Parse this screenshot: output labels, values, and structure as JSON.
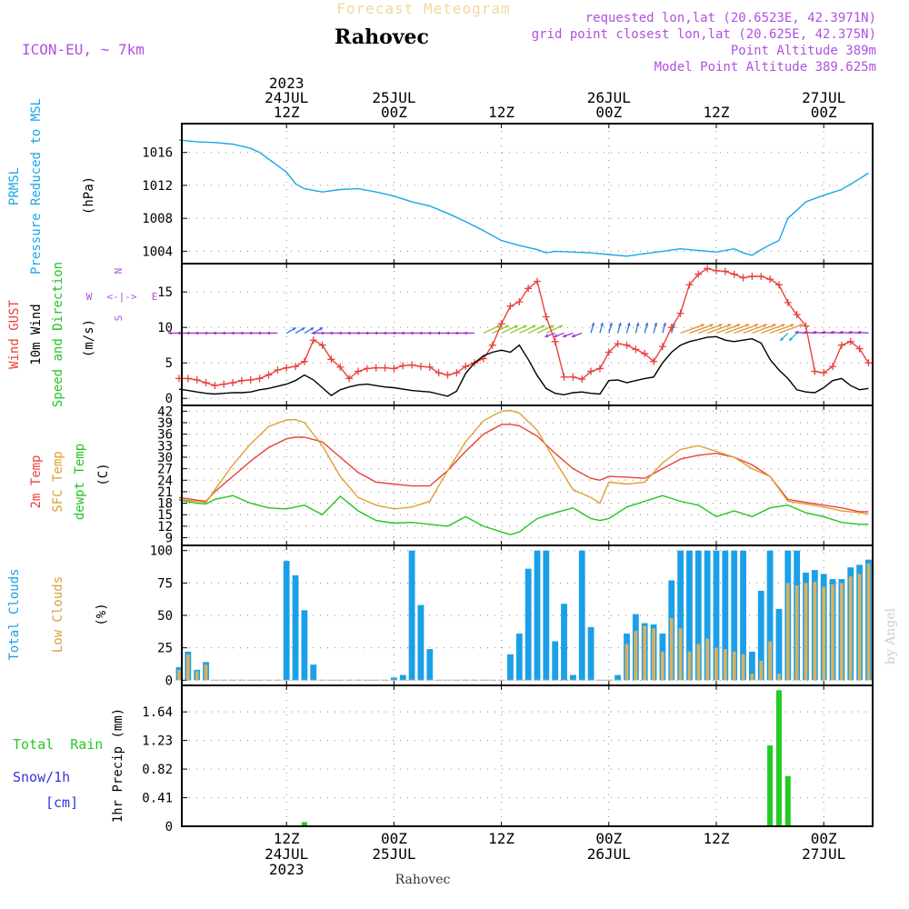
{
  "header": {
    "title": "Forecast Meteogram",
    "location": "Rahovec",
    "model": "ICON-EU, ~ 7km",
    "requested": "requested lon,lat (20.6523E, 42.3971N)",
    "gridpoint": "grid point closest lon,lat (20.625E, 42.375N)",
    "point_alt": "Point Altitude 389m",
    "model_alt": "Model Point Altitude 389.625m",
    "footer_location": "Rahovec",
    "watermark": "by Angel"
  },
  "colors": {
    "pressure": "#1aa6e8",
    "gust": "#e8413c",
    "wind": "#000000",
    "temp2m": "#e8413c",
    "sfctemp": "#e0a030",
    "dewpt": "#22c422",
    "total_clouds": "#1aa0e8",
    "low_clouds": "#d8b060",
    "rain": "#22cc22",
    "snow": "#3333dd",
    "purple": "#b050e0"
  },
  "time_axis": {
    "top_labels": [
      {
        "t": 12,
        "lines": [
          "2023",
          "24JUL",
          "12Z"
        ]
      },
      {
        "t": 24,
        "lines": [
          "25JUL",
          "00Z"
        ]
      },
      {
        "t": 36,
        "lines": [
          "12Z"
        ]
      },
      {
        "t": 48,
        "lines": [
          "26JUL",
          "00Z"
        ]
      },
      {
        "t": 60,
        "lines": [
          "12Z"
        ]
      },
      {
        "t": 72,
        "lines": [
          "27JUL",
          "00Z"
        ]
      }
    ],
    "bottom_labels": [
      {
        "t": 12,
        "lines": [
          "12Z",
          "24JUL",
          "2023"
        ]
      },
      {
        "t": 24,
        "lines": [
          "00Z",
          "25JUL"
        ]
      },
      {
        "t": 36,
        "lines": [
          "12Z"
        ]
      },
      {
        "t": 48,
        "lines": [
          "00Z",
          "26JUL"
        ]
      },
      {
        "t": 60,
        "lines": [
          "12Z"
        ]
      },
      {
        "t": 72,
        "lines": [
          "00Z",
          "27JUL"
        ]
      }
    ]
  },
  "chart_data": [
    {
      "type": "line",
      "panel": "pressure",
      "side_labels": [
        "PRMSL",
        "Pressure Reduced to MSL"
      ],
      "ylabel": "(hPa)",
      "ylim": [
        1002.5,
        1019.5
      ],
      "yticks": [
        1004,
        1008,
        1012,
        1016
      ],
      "x_hours_from_24JUL00Z": [
        0,
        2,
        4,
        6,
        8,
        9,
        10,
        11,
        12,
        13,
        14,
        16,
        18,
        20,
        22,
        24,
        26,
        28,
        30,
        32,
        34,
        36,
        38,
        40,
        41,
        42,
        44,
        46,
        48,
        50,
        52,
        54,
        56,
        58,
        60,
        62,
        63,
        64,
        65,
        66,
        67,
        68,
        70,
        72,
        74,
        76,
        77
      ],
      "series": [
        {
          "name": "PRMSL",
          "values": [
            1017.5,
            1017.3,
            1017.2,
            1017.0,
            1016.5,
            1016.0,
            1015.2,
            1014.4,
            1013.6,
            1012.2,
            1011.6,
            1011.2,
            1011.5,
            1011.6,
            1011.2,
            1010.7,
            1010.0,
            1009.5,
            1008.6,
            1007.6,
            1006.5,
            1005.3,
            1004.7,
            1004.2,
            1003.8,
            1004.0,
            1003.9,
            1003.8,
            1003.6,
            1003.4,
            1003.7,
            1004.0,
            1004.3,
            1004.1,
            1003.9,
            1004.3,
            1003.8,
            1003.5,
            1004.2,
            1004.8,
            1005.3,
            1008.0,
            1010.0,
            1010.8,
            1011.5,
            1012.8,
            1013.5
          ]
        }
      ]
    },
    {
      "type": "line",
      "panel": "wind",
      "side_labels": [
        "Wind GUST",
        "10m Wind",
        "Speed and Direction"
      ],
      "ylabel": "(m/s)",
      "ylim": [
        -1,
        19
      ],
      "yticks": [
        0,
        5,
        10,
        15
      ],
      "x_hours_from_24JUL00Z": [
        0,
        1,
        2,
        3,
        4,
        5,
        6,
        7,
        8,
        9,
        10,
        11,
        12,
        13,
        14,
        15,
        16,
        17,
        18,
        19,
        20,
        21,
        22,
        23,
        24,
        25,
        26,
        27,
        28,
        29,
        30,
        31,
        32,
        33,
        34,
        35,
        36,
        37,
        38,
        39,
        40,
        41,
        42,
        43,
        44,
        45,
        46,
        47,
        48,
        49,
        50,
        51,
        52,
        53,
        54,
        55,
        56,
        57,
        58,
        59,
        60,
        61,
        62,
        63,
        64,
        65,
        66,
        67,
        68,
        69,
        70,
        71,
        72,
        73,
        74,
        75,
        76,
        77
      ],
      "series": [
        {
          "name": "Wind GUST",
          "values": [
            2.8,
            2.8,
            2.6,
            2.2,
            1.8,
            2.0,
            2.2,
            2.5,
            2.6,
            2.8,
            3.3,
            4.0,
            4.3,
            4.5,
            5.2,
            8.2,
            7.5,
            5.5,
            4.4,
            2.8,
            3.8,
            4.2,
            4.3,
            4.3,
            4.2,
            4.6,
            4.7,
            4.5,
            4.4,
            3.6,
            3.3,
            3.6,
            4.5,
            5.0,
            5.6,
            7.5,
            10.5,
            13.0,
            13.6,
            15.5,
            16.5,
            11.5,
            8.0,
            3.0,
            3.0,
            2.7,
            3.8,
            4.2,
            6.5,
            7.7,
            7.5,
            6.9,
            6.3,
            5.2,
            7.3,
            10.0,
            12.0,
            16.0,
            17.5,
            18.3,
            18.0,
            17.9,
            17.5,
            17.0,
            17.2,
            17.2,
            16.8,
            16.0,
            13.5,
            11.8,
            10.2,
            3.8,
            3.6,
            4.5,
            7.5,
            8.0,
            7.0,
            5.0
          ]
        },
        {
          "name": "10m Wind",
          "values": [
            1.3,
            1.1,
            0.9,
            0.7,
            0.6,
            0.7,
            0.8,
            0.8,
            0.9,
            1.2,
            1.4,
            1.7,
            2.0,
            2.5,
            3.3,
            2.6,
            1.5,
            0.4,
            1.2,
            1.6,
            1.9,
            2.0,
            1.8,
            1.6,
            1.5,
            1.3,
            1.1,
            1.0,
            0.9,
            0.6,
            0.3,
            1.0,
            3.5,
            5.0,
            6.0,
            6.5,
            6.8,
            6.5,
            7.5,
            5.5,
            3.2,
            1.4,
            0.7,
            0.5,
            0.8,
            0.9,
            0.7,
            0.6,
            2.5,
            2.6,
            2.2,
            2.5,
            2.8,
            3.0,
            5.0,
            6.5,
            7.5,
            8.0,
            8.3,
            8.6,
            8.7,
            8.2,
            8.0,
            8.2,
            8.4,
            7.8,
            5.5,
            4.0,
            2.8,
            1.2,
            0.9,
            0.8,
            1.5,
            2.5,
            2.8,
            1.8,
            1.2,
            1.4
          ]
        }
      ]
    },
    {
      "type": "line",
      "panel": "temperature",
      "side_labels": [
        "2m Temp",
        "SFC Temp",
        "dewpt Temp"
      ],
      "ylabel": "(C)",
      "ylim": [
        7,
        43.5
      ],
      "yticks": [
        9,
        12,
        15,
        18,
        21,
        24,
        27,
        30,
        33,
        36,
        39,
        42
      ],
      "x_hours_from_24JUL00Z": [
        0,
        2,
        3,
        4,
        6,
        8,
        10,
        12,
        13,
        14,
        16,
        18,
        20,
        22,
        24,
        26,
        28,
        30,
        32,
        34,
        36,
        37,
        38,
        40,
        42,
        44,
        46,
        47,
        48,
        50,
        52,
        54,
        56,
        58,
        60,
        62,
        64,
        66,
        68,
        70,
        72,
        74,
        76,
        77
      ],
      "series": [
        {
          "name": "2m Temp",
          "values": [
            19.5,
            18.8,
            18.5,
            21.0,
            25.0,
            29.0,
            32.5,
            34.8,
            35.2,
            35.2,
            34.0,
            30.0,
            26.0,
            23.5,
            23.0,
            22.5,
            22.5,
            26.5,
            31.5,
            36.0,
            38.5,
            38.6,
            38.2,
            35.5,
            31.0,
            27.0,
            24.5,
            24.0,
            25.0,
            24.8,
            24.5,
            27.0,
            29.5,
            30.5,
            31.0,
            30.0,
            28.0,
            25.0,
            19.0,
            18.2,
            17.5,
            16.8,
            15.8,
            15.8
          ]
        },
        {
          "name": "SFC Temp",
          "values": [
            19.0,
            18.5,
            18.2,
            21.5,
            28.0,
            33.5,
            38.0,
            39.7,
            39.8,
            39.0,
            33.0,
            25.0,
            19.5,
            17.5,
            16.5,
            17.0,
            18.5,
            26.5,
            34.0,
            39.5,
            42.0,
            42.2,
            41.5,
            37.0,
            29.0,
            21.5,
            19.5,
            18.0,
            23.5,
            23.0,
            23.5,
            28.5,
            32.0,
            33.0,
            31.5,
            30.0,
            27.0,
            25.0,
            18.5,
            17.8,
            17.0,
            16.0,
            15.5,
            15.2
          ]
        },
        {
          "name": "dewpt Temp",
          "values": [
            18.8,
            18.0,
            17.8,
            19.0,
            20.0,
            18.0,
            16.8,
            16.5,
            17.0,
            17.5,
            15.0,
            19.8,
            16.0,
            13.5,
            12.8,
            13.0,
            12.5,
            12.0,
            14.5,
            12.0,
            10.5,
            9.8,
            10.5,
            14.0,
            15.5,
            16.8,
            14.0,
            13.5,
            14.0,
            17.0,
            18.5,
            20.0,
            18.5,
            17.5,
            14.5,
            16.0,
            14.5,
            16.8,
            17.5,
            15.5,
            14.5,
            13.0,
            12.5,
            12.5
          ]
        }
      ]
    },
    {
      "type": "bar",
      "panel": "clouds",
      "side_labels": [
        "Total Clouds",
        "Low Clouds"
      ],
      "ylabel": "(%)",
      "ylim": [
        -4,
        104
      ],
      "yticks": [
        0,
        25,
        50,
        75,
        100
      ],
      "x_hours_from_24JUL00Z": [
        0,
        1,
        2,
        3,
        4,
        5,
        6,
        7,
        8,
        9,
        10,
        11,
        12,
        13,
        14,
        15,
        16,
        17,
        18,
        19,
        20,
        21,
        22,
        23,
        24,
        25,
        26,
        27,
        28,
        29,
        30,
        31,
        32,
        33,
        34,
        35,
        36,
        37,
        38,
        39,
        40,
        41,
        42,
        43,
        44,
        45,
        46,
        47,
        48,
        49,
        50,
        51,
        52,
        53,
        54,
        55,
        56,
        57,
        58,
        59,
        60,
        61,
        62,
        63,
        64,
        65,
        66,
        67,
        68,
        69,
        70,
        71,
        72,
        73,
        74,
        75,
        76,
        77
      ],
      "series": [
        {
          "name": "Total Clouds",
          "values": [
            10,
            22,
            8,
            14,
            0,
            0,
            0,
            0,
            0,
            0,
            0,
            0,
            92,
            81,
            54,
            12,
            0,
            0,
            0,
            0,
            0,
            0,
            0,
            0,
            2,
            4,
            100,
            58,
            24,
            0,
            0,
            0,
            0,
            0,
            0,
            0,
            0,
            20,
            36,
            86,
            100,
            100,
            30,
            59,
            4,
            100,
            41,
            0,
            0,
            4,
            36,
            51,
            44,
            43,
            36,
            77,
            100,
            100,
            100,
            100,
            100,
            100,
            100,
            100,
            22,
            69,
            100,
            55,
            100,
            100,
            83,
            85,
            82,
            78,
            78,
            87,
            89,
            93
          ]
        },
        {
          "name": "Low Clouds",
          "values": [
            8,
            20,
            7,
            12,
            0,
            0,
            0,
            0,
            0,
            0,
            0,
            0,
            0,
            0,
            0,
            0,
            0,
            0,
            0,
            0,
            0,
            0,
            0,
            0,
            0,
            0,
            0,
            0,
            0,
            0,
            0,
            0,
            0,
            0,
            0,
            0,
            0,
            0,
            0,
            0,
            0,
            0,
            0,
            0,
            0,
            0,
            0,
            0,
            0,
            0,
            28,
            38,
            42,
            40,
            22,
            48,
            40,
            22,
            28,
            32,
            25,
            24,
            22,
            20,
            5,
            15,
            30,
            5,
            75,
            73,
            75,
            76,
            72,
            74,
            75,
            80,
            82,
            90
          ]
        }
      ]
    },
    {
      "type": "bar",
      "panel": "precip",
      "side_labels": [
        "Total  Rain",
        "Snow/1h",
        "[cm]"
      ],
      "ylabel": "1hr Precip (mm)",
      "ylim": [
        0,
        2.02
      ],
      "yticks": [
        0,
        0.41,
        0.82,
        1.23,
        1.64
      ],
      "ytick_labels": [
        "0",
        "0.41",
        "0.82",
        "1.23",
        "1.64"
      ],
      "x_hours_from_24JUL00Z": [
        14,
        66,
        67,
        68,
        71
      ],
      "series": [
        {
          "name": "Total Rain",
          "values": [
            0.06,
            1.16,
            1.95,
            0.72,
            0.01
          ]
        }
      ]
    }
  ]
}
